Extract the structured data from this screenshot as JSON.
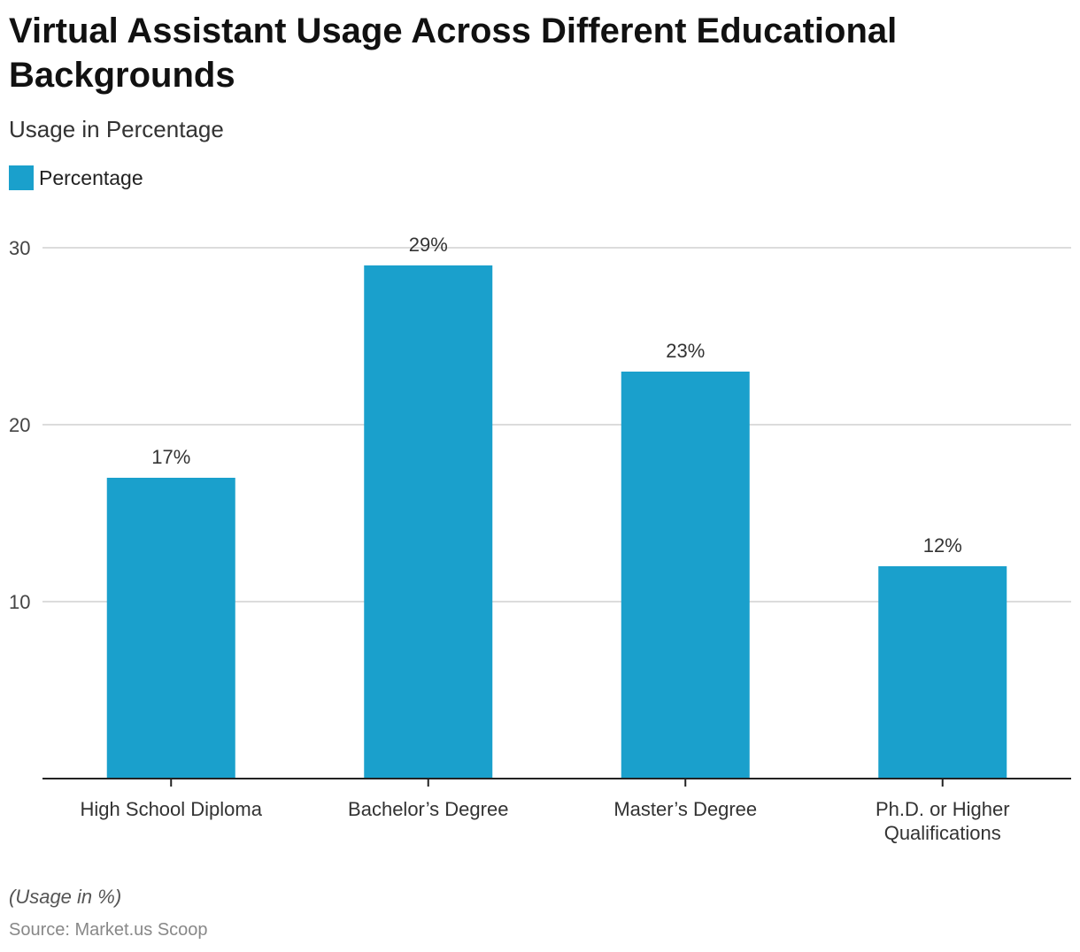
{
  "header": {
    "title": "Virtual Assistant Usage Across Different Educational Backgrounds",
    "subtitle": "Usage in Percentage"
  },
  "legend": {
    "label": "Percentage"
  },
  "colors": {
    "bar": "#1aa0cc",
    "grid": "#d0d0d0",
    "axis": "#222222"
  },
  "chart_data": {
    "type": "bar",
    "title": "Virtual Assistant Usage Across Different Educational Backgrounds",
    "subtitle": "Usage in Percentage",
    "xlabel": "",
    "ylabel": "",
    "categories": [
      [
        "High School Diploma"
      ],
      [
        "Bachelor’s Degree"
      ],
      [
        "Master’s Degree"
      ],
      [
        "Ph.D. or Higher",
        "Qualifications"
      ]
    ],
    "series": [
      {
        "name": "Percentage",
        "values": [
          17,
          29,
          23,
          12
        ],
        "labels": [
          "17%",
          "29%",
          "23%",
          "12%"
        ]
      }
    ],
    "yticks": [
      10,
      20,
      30
    ],
    "ylim": [
      0,
      30
    ],
    "grid": true,
    "legend_position": "top-left"
  },
  "footer": {
    "note": "(Usage in %)",
    "source": "Source: Market.us Scoop"
  }
}
